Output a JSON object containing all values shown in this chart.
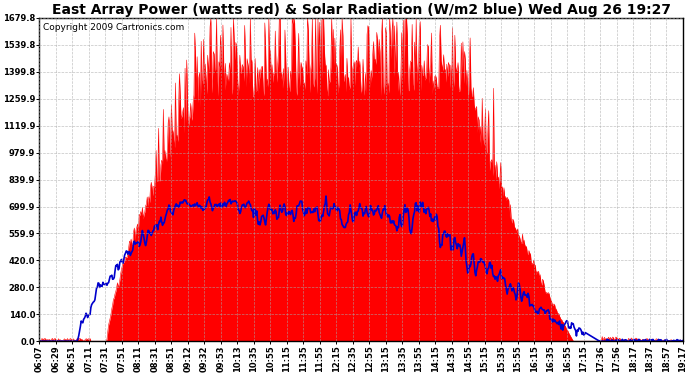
{
  "title": "East Array Power (watts red) & Solar Radiation (W/m2 blue) Wed Aug 26 19:27",
  "copyright": "Copyright 2009 Cartronics.com",
  "yticks": [
    0.0,
    140.0,
    280.0,
    420.0,
    559.9,
    699.9,
    839.9,
    979.9,
    1119.9,
    1259.9,
    1399.8,
    1539.8,
    1679.8
  ],
  "ylim": [
    0.0,
    1679.8
  ],
  "bg_color": "#ffffff",
  "plot_bg_color": "#ffffff",
  "grid_color": "#aaaaaa",
  "red_color": "#ff0000",
  "blue_color": "#0000cc",
  "xtick_labels": [
    "06:07",
    "06:29",
    "06:51",
    "07:11",
    "07:31",
    "07:51",
    "08:11",
    "08:31",
    "08:51",
    "09:12",
    "09:32",
    "09:53",
    "10:13",
    "10:35",
    "10:55",
    "11:15",
    "11:35",
    "11:55",
    "12:15",
    "12:35",
    "12:55",
    "13:15",
    "13:35",
    "13:55",
    "14:15",
    "14:35",
    "14:55",
    "15:15",
    "15:35",
    "15:55",
    "16:15",
    "16:35",
    "16:55",
    "17:15",
    "17:36",
    "17:56",
    "18:17",
    "18:37",
    "18:57",
    "19:17"
  ],
  "title_fontsize": 10,
  "tick_fontsize": 6,
  "copyright_fontsize": 6.5,
  "red_base_plateau": 1350,
  "red_spike_max": 1679.8,
  "blue_plateau": 700,
  "blue_peak": 750
}
